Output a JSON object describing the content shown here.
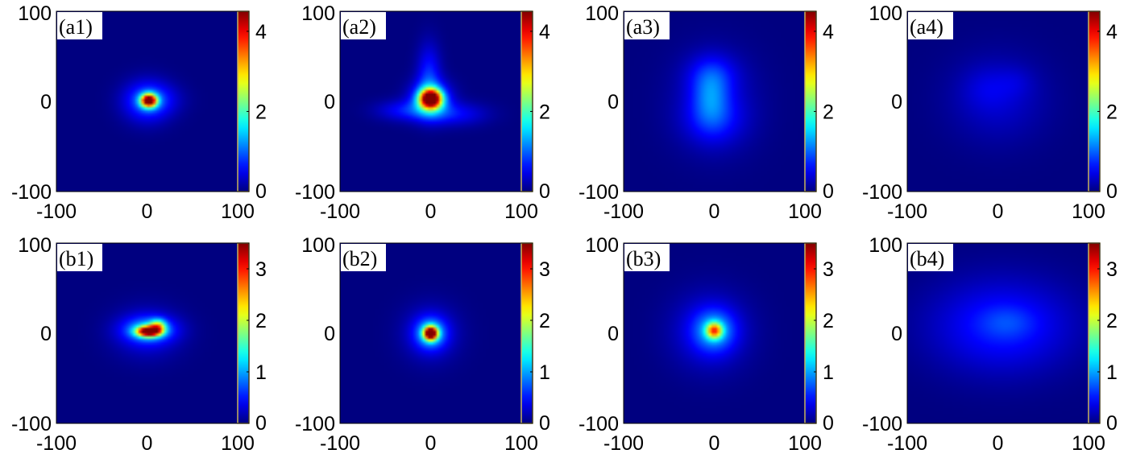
{
  "chart_data": [
    {
      "type": "heatmap",
      "label": "(a1)",
      "xlim": [
        -100,
        100
      ],
      "ylim": [
        -100,
        100
      ],
      "xticks": [
        "-100",
        "0",
        "100"
      ],
      "yticks": [
        "100",
        "0",
        "-100"
      ],
      "colorbar": {
        "min": 0,
        "max": 4.5,
        "ticks": [
          "4",
          "2",
          "0"
        ]
      },
      "blobs": [
        {
          "x": 2,
          "y": 1,
          "sx": 6,
          "sy": 5,
          "amp": 4.5
        },
        {
          "x": 0,
          "y": 0,
          "sx": 18,
          "sy": 16,
          "amp": 0.9
        },
        {
          "x": 10,
          "y": 2,
          "sx": 20,
          "sy": 12,
          "amp": 0.35
        }
      ]
    },
    {
      "type": "heatmap",
      "label": "(a2)",
      "xlim": [
        -100,
        100
      ],
      "ylim": [
        -100,
        100
      ],
      "xticks": [
        "-100",
        "0",
        "100"
      ],
      "yticks": [
        "100",
        "0",
        "-100"
      ],
      "colorbar": {
        "min": 0,
        "max": 4.5,
        "ticks": [
          "4",
          "2",
          "0"
        ]
      },
      "blobs": [
        {
          "x": 0,
          "y": 3,
          "sx": 8,
          "sy": 7,
          "amp": 4.6
        },
        {
          "x": 0,
          "y": 2,
          "sx": 15,
          "sy": 14,
          "amp": 1.4
        },
        {
          "x": -2,
          "y": 30,
          "sx": 9,
          "sy": 24,
          "amp": 0.7
        },
        {
          "x": -28,
          "y": -10,
          "sx": 22,
          "sy": 8,
          "amp": 0.6
        },
        {
          "x": 28,
          "y": -14,
          "sx": 24,
          "sy": 9,
          "amp": 0.55
        }
      ]
    },
    {
      "type": "heatmap",
      "label": "(a3)",
      "xlim": [
        -100,
        100
      ],
      "ylim": [
        -100,
        100
      ],
      "xticks": [
        "-100",
        "0",
        "100"
      ],
      "yticks": [
        "100",
        "0",
        "-100"
      ],
      "colorbar": {
        "min": 0,
        "max": 4.5,
        "ticks": [
          "4",
          "2",
          "0"
        ]
      },
      "blobs": [
        {
          "x": -4,
          "y": 5,
          "sx": 14,
          "sy": 22,
          "amp": 0.7
        },
        {
          "x": -2,
          "y": 30,
          "sx": 20,
          "sy": 16,
          "amp": 0.45
        },
        {
          "x": 0,
          "y": -20,
          "sx": 24,
          "sy": 20,
          "amp": 0.45
        },
        {
          "x": 0,
          "y": 0,
          "sx": 34,
          "sy": 40,
          "amp": 0.3
        }
      ]
    },
    {
      "type": "heatmap",
      "label": "(a4)",
      "xlim": [
        -100,
        100
      ],
      "ylim": [
        -100,
        100
      ],
      "xticks": [
        "-100",
        "0",
        "100"
      ],
      "yticks": [
        "100",
        "0",
        "-100"
      ],
      "colorbar": {
        "min": 0,
        "max": 4.5,
        "ticks": [
          "4",
          "2",
          "0"
        ]
      },
      "blobs": [
        {
          "x": 0,
          "y": 3,
          "sx": 38,
          "sy": 34,
          "amp": 0.35
        },
        {
          "x": -12,
          "y": 15,
          "sx": 18,
          "sy": 16,
          "amp": 0.18
        },
        {
          "x": 20,
          "y": 22,
          "sx": 14,
          "sy": 12,
          "amp": 0.14
        }
      ]
    },
    {
      "type": "heatmap",
      "label": "(b1)",
      "xlim": [
        -100,
        100
      ],
      "ylim": [
        -100,
        100
      ],
      "xticks": [
        "-100",
        "0",
        "100"
      ],
      "yticks": [
        "100",
        "0",
        "-100"
      ],
      "colorbar": {
        "min": 0,
        "max": 3.5,
        "ticks": [
          "3",
          "2",
          "1",
          "0"
        ]
      },
      "blobs": [
        {
          "x": 2,
          "y": 2,
          "sx": 9,
          "sy": 4,
          "amp": 3.4
        },
        {
          "x": 12,
          "y": 8,
          "sx": 6,
          "sy": 5,
          "amp": 1.4
        },
        {
          "x": 2,
          "y": 4,
          "sx": 20,
          "sy": 10,
          "amp": 0.9
        },
        {
          "x": 0,
          "y": 0,
          "sx": 26,
          "sy": 20,
          "amp": 0.35
        }
      ]
    },
    {
      "type": "heatmap",
      "label": "(b2)",
      "xlim": [
        -100,
        100
      ],
      "ylim": [
        -100,
        100
      ],
      "xticks": [
        "-100",
        "0",
        "100"
      ],
      "yticks": [
        "100",
        "0",
        "-100"
      ],
      "colorbar": {
        "min": 0,
        "max": 3.5,
        "ticks": [
          "3",
          "2",
          "1",
          "0"
        ]
      },
      "blobs": [
        {
          "x": 0,
          "y": 0,
          "sx": 5,
          "sy": 5,
          "amp": 3.6
        },
        {
          "x": 0,
          "y": 0,
          "sx": 12,
          "sy": 12,
          "amp": 1.0
        },
        {
          "x": 0,
          "y": 0,
          "sx": 22,
          "sy": 22,
          "amp": 0.35
        }
      ]
    },
    {
      "type": "heatmap",
      "label": "(b3)",
      "xlim": [
        -100,
        100
      ],
      "ylim": [
        -100,
        100
      ],
      "xticks": [
        "-100",
        "0",
        "100"
      ],
      "yticks": [
        "100",
        "0",
        "-100"
      ],
      "colorbar": {
        "min": 0,
        "max": 3.5,
        "ticks": [
          "3",
          "2",
          "1",
          "0"
        ]
      },
      "blobs": [
        {
          "x": 0,
          "y": 3,
          "sx": 6,
          "sy": 6,
          "amp": 1.9
        },
        {
          "x": 0,
          "y": 3,
          "sx": 16,
          "sy": 16,
          "amp": 0.8
        },
        {
          "x": -5,
          "y": 2,
          "sx": 30,
          "sy": 30,
          "amp": 0.4
        }
      ]
    },
    {
      "type": "heatmap",
      "label": "(b4)",
      "xlim": [
        -100,
        100
      ],
      "ylim": [
        -100,
        100
      ],
      "xticks": [
        "-100",
        "0",
        "100"
      ],
      "yticks": [
        "100",
        "0",
        "-100"
      ],
      "colorbar": {
        "min": 0,
        "max": 3.5,
        "ticks": [
          "3",
          "2",
          "1",
          "0"
        ]
      },
      "blobs": [
        {
          "x": 5,
          "y": 8,
          "sx": 55,
          "sy": 36,
          "amp": 0.55
        },
        {
          "x": 10,
          "y": 12,
          "sx": 20,
          "sy": 12,
          "amp": 0.2
        }
      ]
    }
  ]
}
